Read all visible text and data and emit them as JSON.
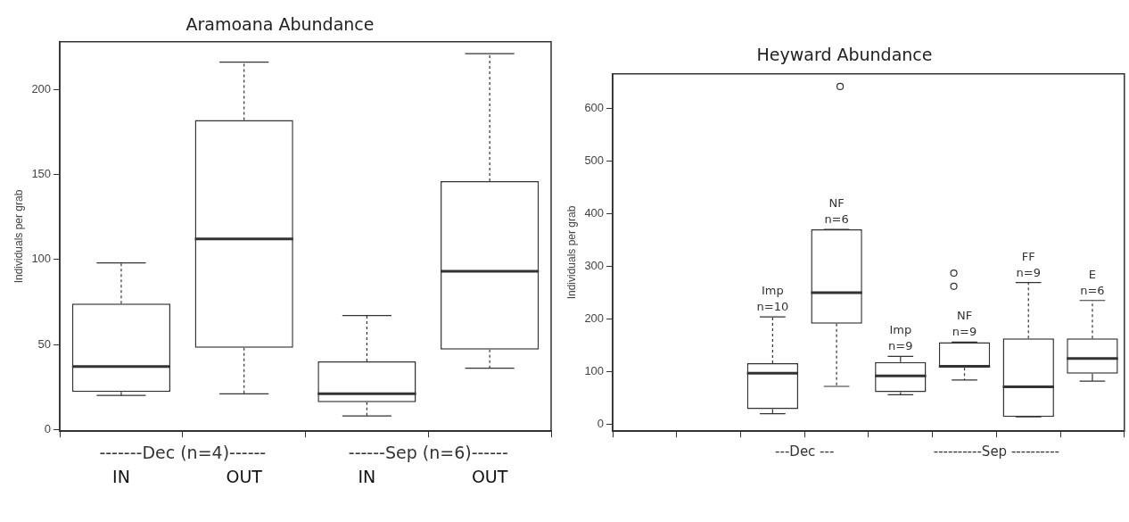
{
  "chart_data": [
    {
      "type": "box",
      "title": "Aramoana Abundance",
      "ylabel": "Individuals per grab",
      "categories": [
        "IN",
        "OUT",
        "IN",
        "OUT"
      ],
      "boxes": [
        {
          "low": 20,
          "q1": 22,
          "median": 37,
          "q3": 74,
          "high": 98
        },
        {
          "low": 21,
          "q1": 48,
          "median": 112,
          "q3": 182,
          "high": 216
        },
        {
          "low": 8,
          "q1": 16,
          "median": 21,
          "q3": 40,
          "high": 67
        },
        {
          "low": 36,
          "q1": 47,
          "median": 93,
          "q3": 146,
          "high": 221
        }
      ],
      "ylim": [
        -1,
        228
      ],
      "yticks": [
        0,
        50,
        100,
        150,
        200
      ],
      "grid": false,
      "legend": false,
      "annotations": [
        "-------Dec (n=4)------",
        "------Sep (n=6)------"
      ]
    },
    {
      "type": "box",
      "title": "Heyward Abundance",
      "ylabel": "Individuals per grab",
      "categories": [
        null,
        null,
        null,
        null,
        null,
        null,
        null,
        null
      ],
      "boxes": [
        null,
        null,
        {
          "low": 20,
          "q1": 29,
          "median": 97,
          "q3": 116,
          "high": 204
        },
        {
          "low": 72,
          "q1": 191,
          "median": 250,
          "q3": 370,
          "high": 370,
          "outliers": [
            641
          ]
        },
        {
          "low": 56,
          "q1": 61,
          "median": 92,
          "q3": 118,
          "high": 129
        },
        {
          "low": 84,
          "q1": 107,
          "median": 110,
          "q3": 156,
          "high": 156,
          "outliers": [
            262,
            287
          ]
        },
        {
          "low": 14,
          "q1": 14,
          "median": 71,
          "q3": 163,
          "high": 269
        },
        {
          "low": 82,
          "q1": 96,
          "median": 125,
          "q3": 163,
          "high": 235
        }
      ],
      "ylim": [
        -13,
        665
      ],
      "yticks": [
        0,
        100,
        200,
        300,
        400,
        500,
        600
      ],
      "grid": false,
      "legend": false,
      "annotations": [
        "Imp n=10",
        "NF n=6",
        "Imp n=9",
        "NF n=9",
        "FF n=9",
        "E n=6",
        "---Dec ---",
        "----------Sep ----------"
      ]
    }
  ]
}
